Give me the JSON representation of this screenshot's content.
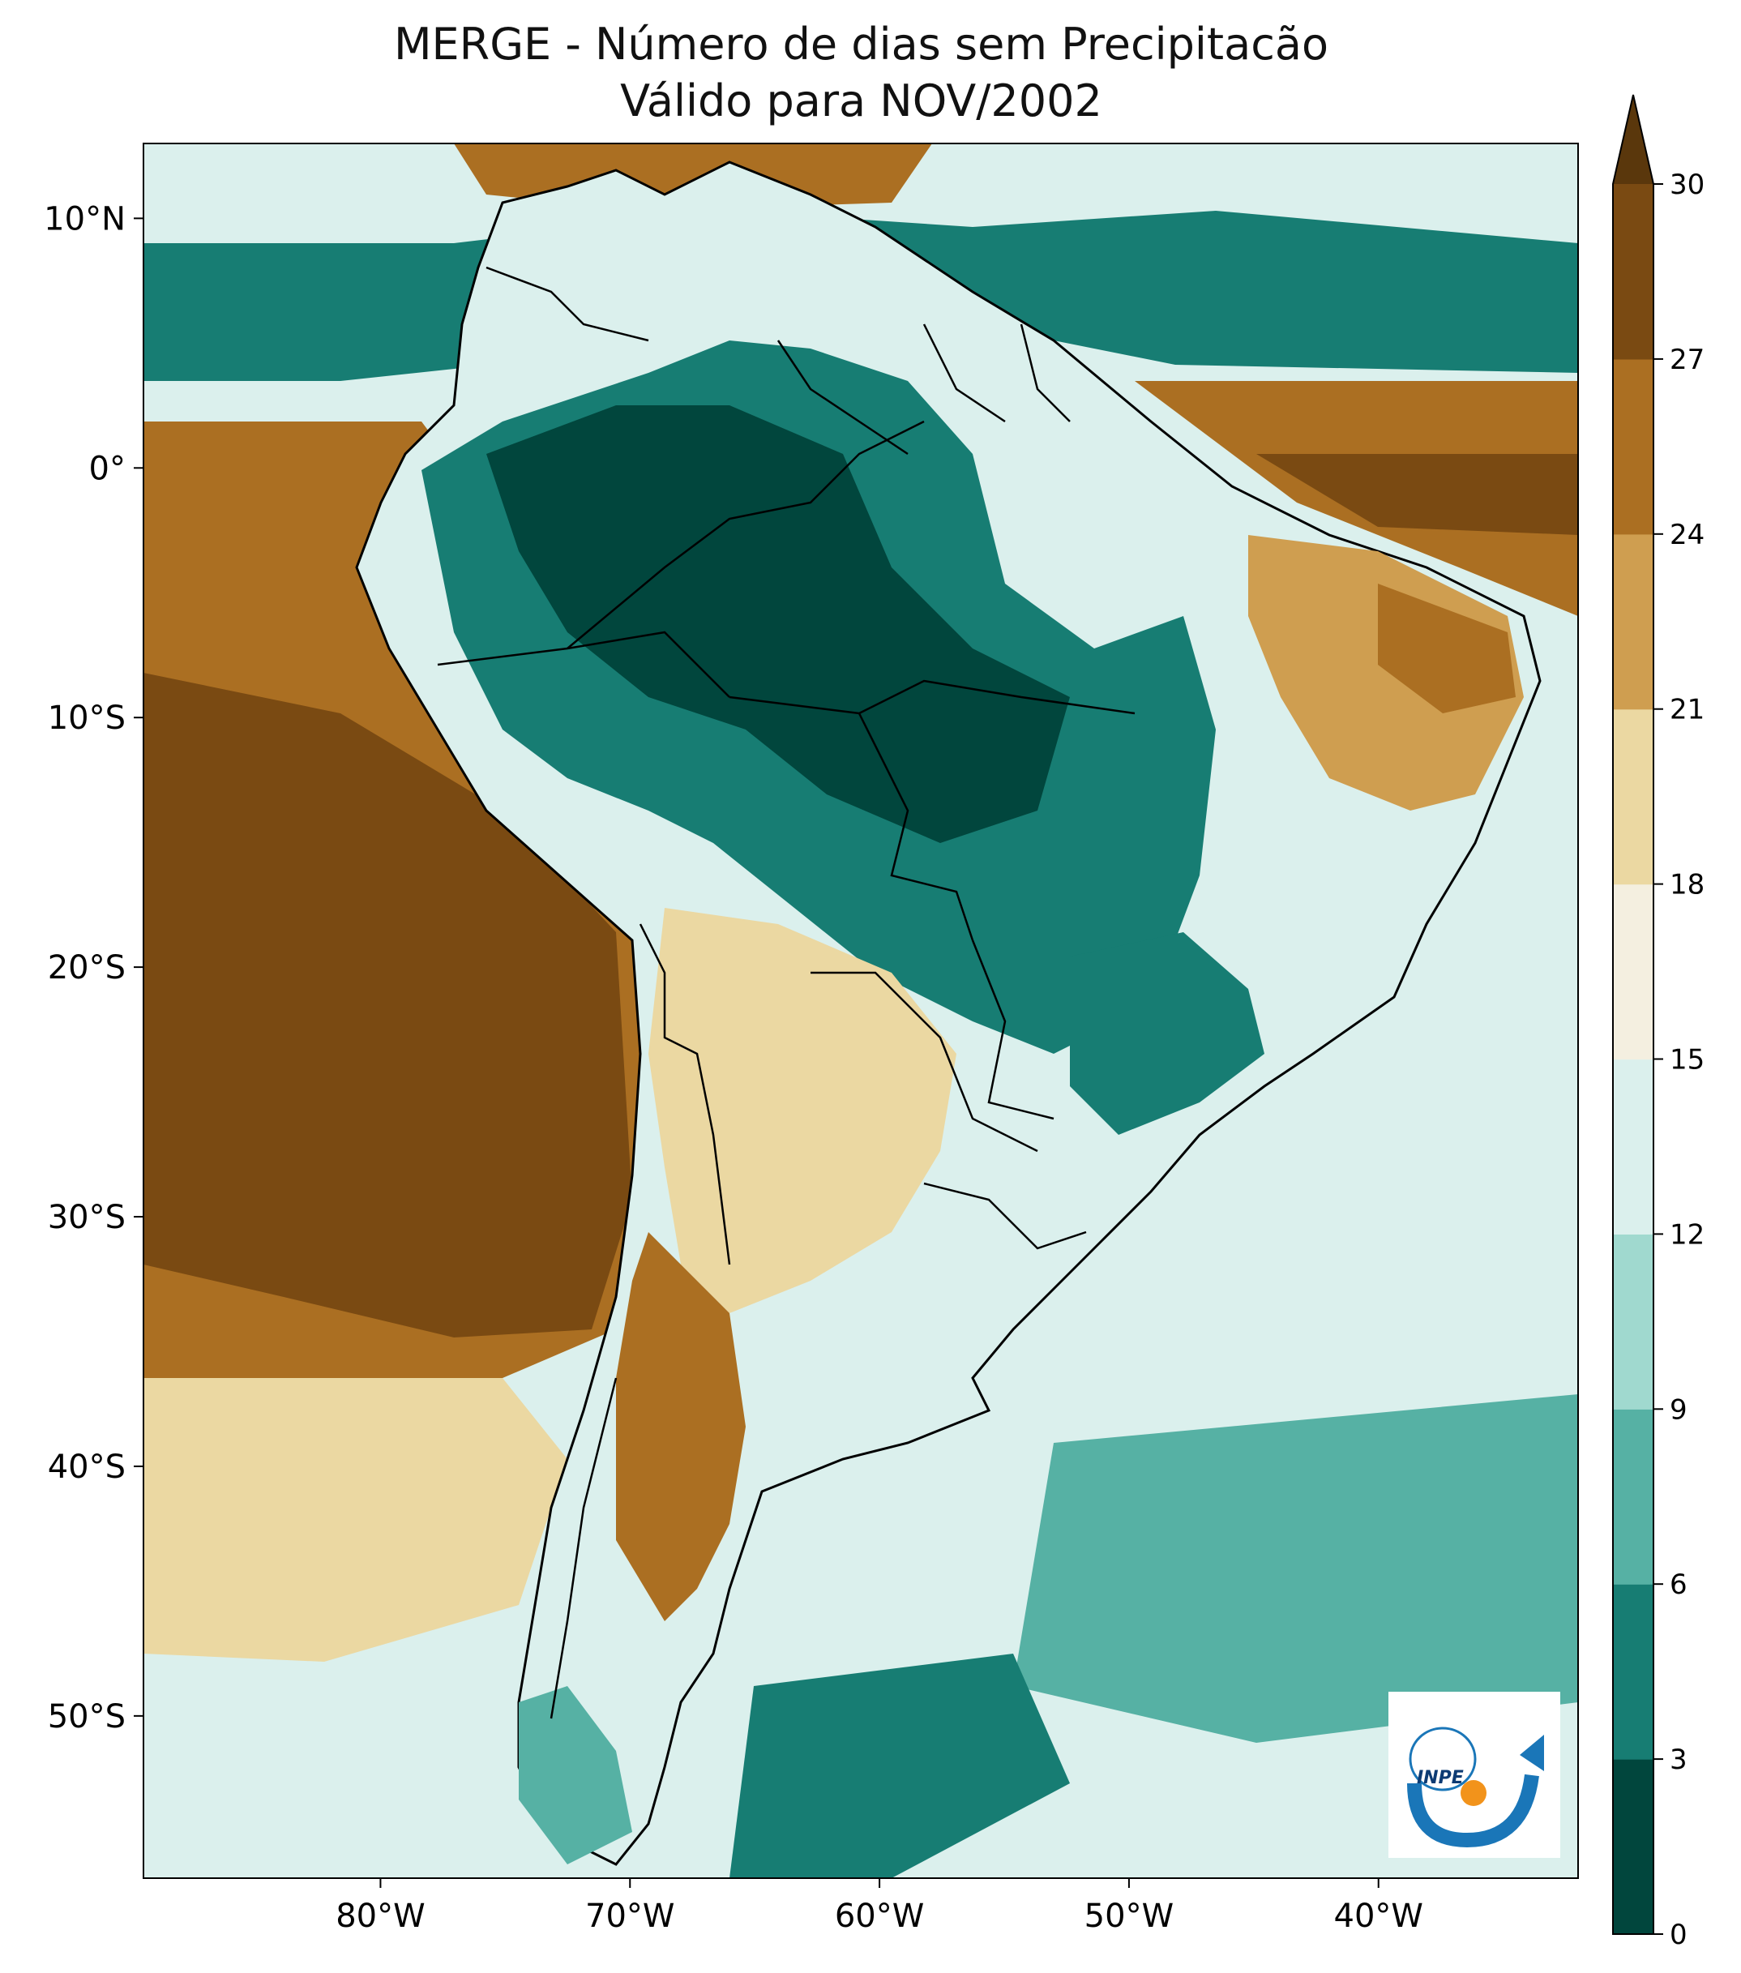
{
  "title": {
    "line1": "MERGE - Número de dias sem Precipitacão",
    "line2": "Válido para NOV/2002"
  },
  "map": {
    "extent": {
      "lon_min": -89.5,
      "lon_max": -32,
      "lat_min": -56.5,
      "lat_max": 13
    },
    "lat_ticks": [
      {
        "lat": 10,
        "label": "10°N"
      },
      {
        "lat": 0,
        "label": "0°"
      },
      {
        "lat": -10,
        "label": "10°S"
      },
      {
        "lat": -20,
        "label": "20°S"
      },
      {
        "lat": -30,
        "label": "30°S"
      },
      {
        "lat": -40,
        "label": "40°S"
      },
      {
        "lat": -50,
        "label": "50°S"
      }
    ],
    "lon_ticks": [
      {
        "lon": -80,
        "label": "80°W"
      },
      {
        "lon": -70,
        "label": "70°W"
      },
      {
        "lon": -60,
        "label": "60°W"
      },
      {
        "lon": -50,
        "label": "50°W"
      },
      {
        "lon": -40,
        "label": "40°W"
      }
    ]
  },
  "colorbar": {
    "levels": [
      0,
      3,
      6,
      9,
      12,
      15,
      18,
      21,
      24,
      27,
      30
    ],
    "labels": [
      "0",
      "3",
      "6",
      "9",
      "12",
      "15",
      "18",
      "21",
      "24",
      "27",
      "30"
    ],
    "colors": [
      "#01463d",
      "#177d73",
      "#56b1a4",
      "#a0d9cf",
      "#dbf0ed",
      "#f4efe0",
      "#ebd8a2",
      "#cf9e50",
      "#ab6f22",
      "#7a4a12"
    ],
    "extend_color": "#5a370c",
    "extend": "max"
  },
  "logo": {
    "text": "INPE"
  }
}
